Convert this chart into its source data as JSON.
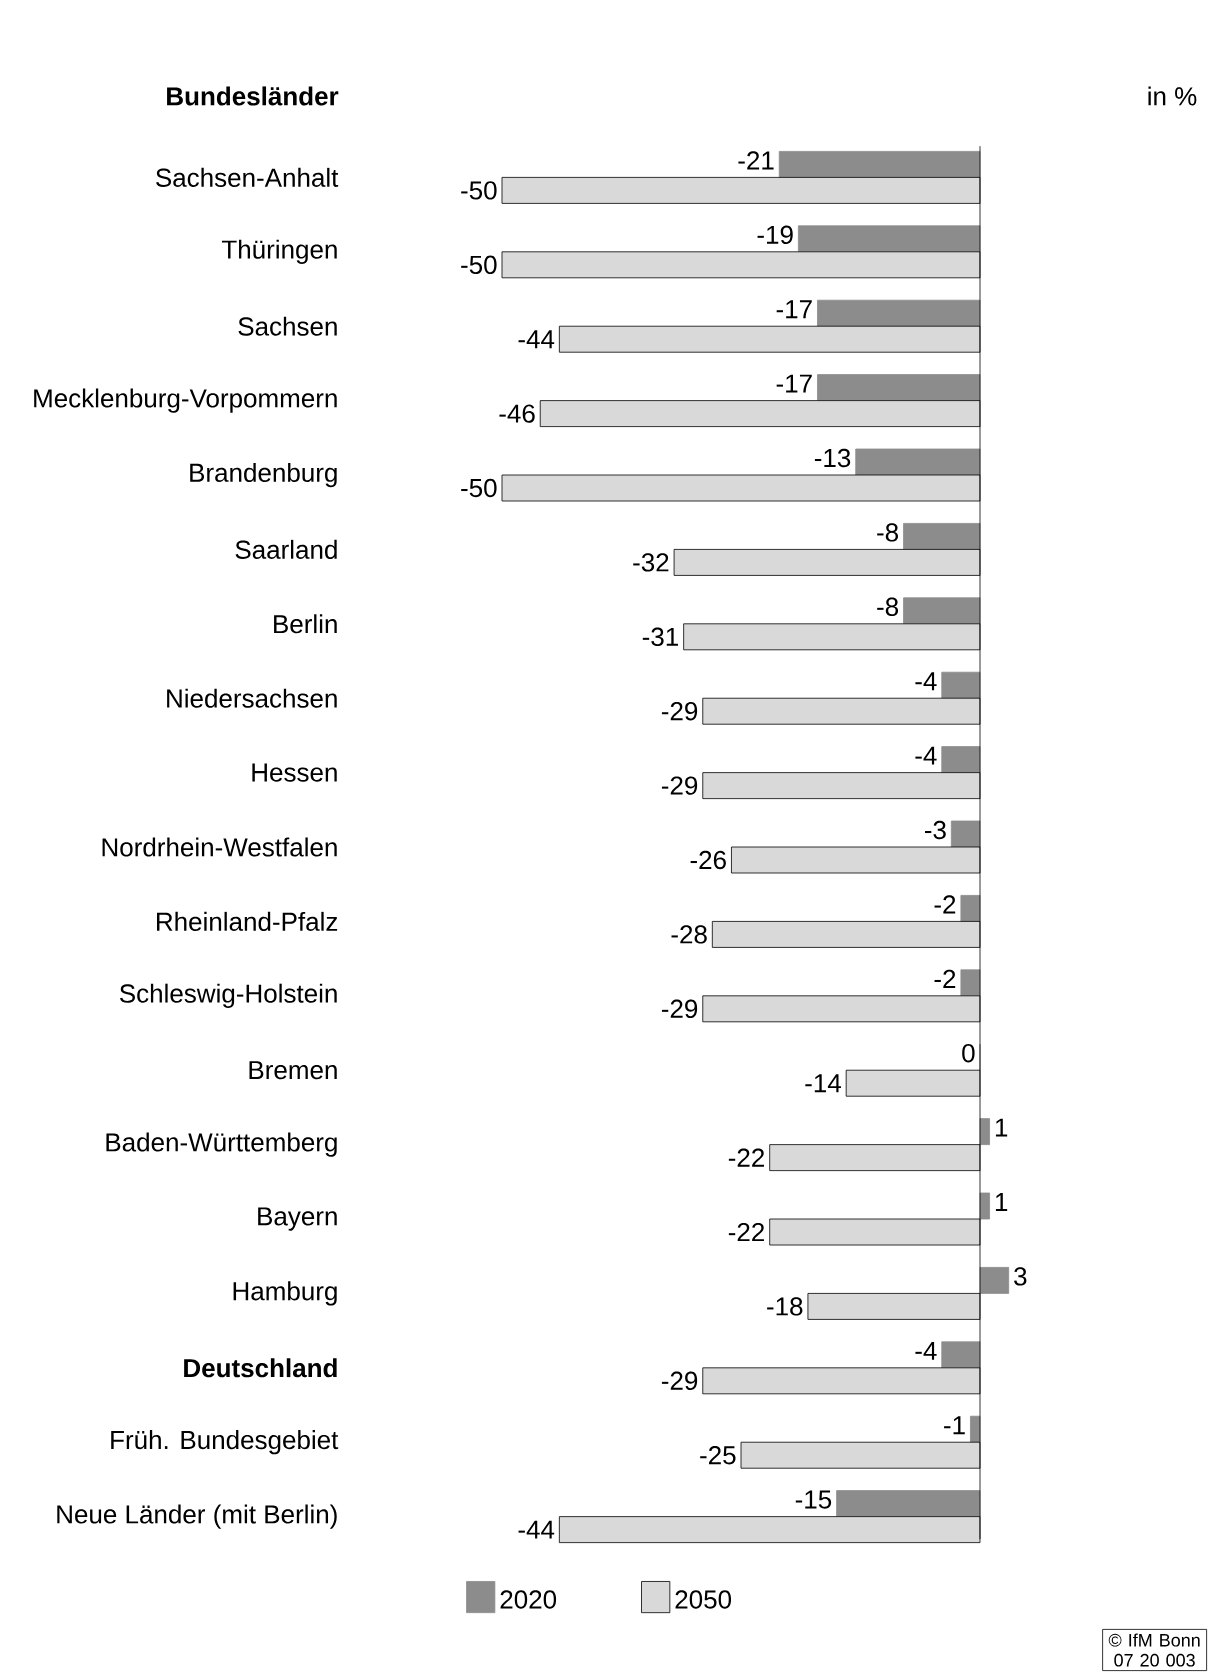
{
  "chart_data": {
    "type": "bar",
    "orientation": "horizontal",
    "ylabel": "Bundesländer",
    "categories": [
      "Sachsen-Anhalt",
      "Thüringen",
      "Sachsen",
      "Mecklenburg-Vorpommern",
      "Brandenburg",
      "Saarland",
      "Berlin",
      "Niedersachsen",
      "Hessen",
      "Nordrhein-Westfalen",
      "Rheinland-Pfalz",
      "Schleswig-Holstein",
      "Bremen",
      "Baden-Württemberg",
      "Bayern",
      "Hamburg",
      "**Deutschland**",
      "Früh. Bundesgebiet",
      "Neue Länder (mit Berlin)"
    ],
    "series": [
      {
        "name": "2020",
        "color": "#8c8c8c",
        "values": [
          -21,
          -19,
          -17,
          -17,
          -13,
          -8,
          -8,
          -4,
          -4,
          -3,
          -2,
          -2,
          0,
          1,
          1,
          3,
          -4,
          -1,
          -15
        ]
      },
      {
        "name": "2050",
        "color": "#d9d9d9",
        "values": [
          -50,
          -50,
          -44,
          -46,
          -50,
          -32,
          -31,
          -29,
          -29,
          -26,
          -28,
          -29,
          -14,
          -22,
          -22,
          -18,
          -29,
          -25,
          -44
        ]
      }
    ],
    "data_labels": true,
    "tick_labels": "y",
    "legend": "bottom",
    "annotations": [
      "in %",
      "© IfM Bonn 07 20 003"
    ]
  }
}
